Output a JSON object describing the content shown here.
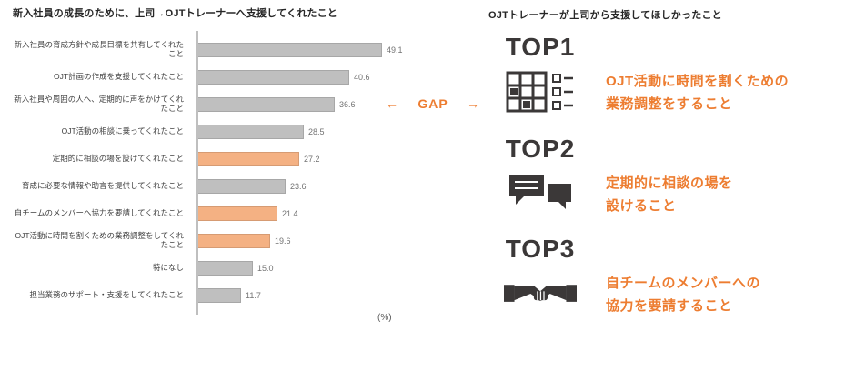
{
  "colors": {
    "accent_orange": "#ED7D31",
    "bar_orange": "#F4B183",
    "bar_gray": "#BFBFBF",
    "dark": "#3B3838"
  },
  "left_chart": {
    "title": "新入社員の成長のために、上司→OJTトレーナーへ支援してくれたこと",
    "unit_label": "(%)"
  },
  "gap": {
    "left_arrow": "←",
    "label": "GAP",
    "right_arrow": "→"
  },
  "right_panel": {
    "title": "OJTトレーナーが上司から支援してほしかったこと",
    "items": [
      {
        "rank": "TOP1",
        "icon": "schedule-table-icon",
        "text": "OJT活動に時間を割くための\n業務調整をすること"
      },
      {
        "rank": "TOP2",
        "icon": "chat-bubbles-icon",
        "text": "定期的に相談の場を\n設けること"
      },
      {
        "rank": "TOP3",
        "icon": "handshake-icon",
        "text": "自チームのメンバーへの\n協力を要請すること"
      }
    ]
  },
  "chart_data": {
    "type": "bar",
    "orientation": "horizontal",
    "title": "新入社員の成長のために、上司→OJTトレーナーへ支援してくれたこと",
    "xlabel": "(%)",
    "xlim": [
      0,
      55
    ],
    "grid": false,
    "legend": false,
    "categories": [
      "新入社員の育成方針や成長目標を共有してくれたこと",
      "OJT計画の作成を支援してくれたこと",
      "新入社員や周囲の人へ、定期的に声をかけてくれたこと",
      "OJT活動の相談に乗ってくれたこと",
      "定期的に相談の場を設けてくれたこと",
      "育成に必要な情報や助言を提供してくれたこと",
      "自チームのメンバーへ協力を要請してくれたこと",
      "OJT活動に時間を割くための業務調整をしてくれたこと",
      "特になし",
      "担当業務のサポート・支援をしてくれたこと"
    ],
    "values": [
      49.1,
      40.6,
      36.6,
      28.5,
      27.2,
      23.6,
      21.4,
      19.6,
      15.0,
      11.7
    ],
    "value_labels": [
      "49.1",
      "40.6",
      "36.6",
      "28.5",
      "27.2",
      "23.6",
      "21.4",
      "19.6",
      "15.0",
      "11.7"
    ],
    "highlighted_indices": [
      4,
      6,
      7
    ],
    "highlight_color": "#F4B183",
    "bar_color": "#BFBFBF"
  }
}
